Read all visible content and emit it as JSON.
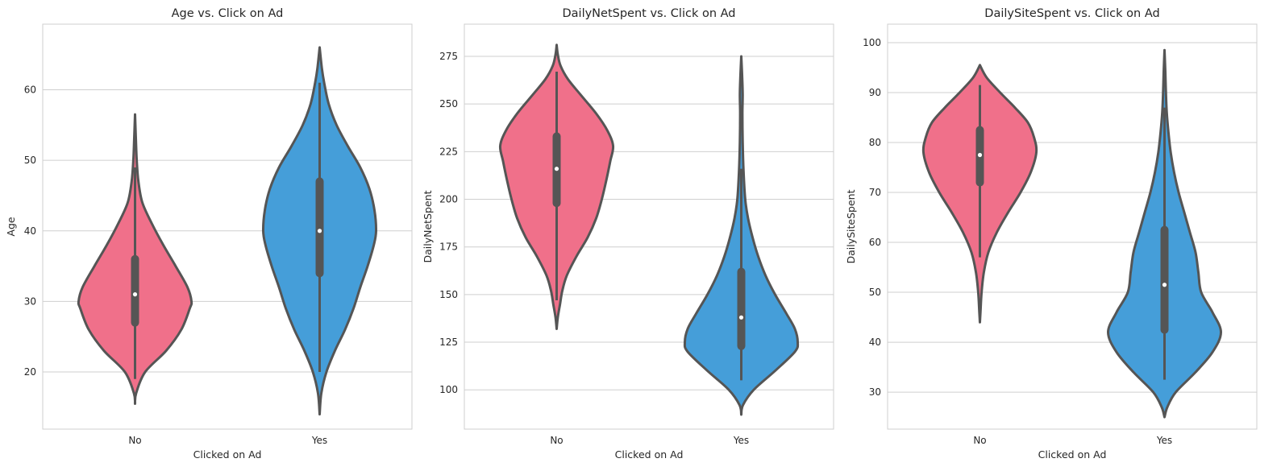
{
  "figure": {
    "background": "#ffffff",
    "grid_color": "#cfcfcf",
    "edge_color": "#555555"
  },
  "chart_data": [
    {
      "type": "violin",
      "title": "Age vs. Click on Ad",
      "xlabel": "Clicked on Ad",
      "ylabel": "Age",
      "categories": [
        "No",
        "Yes"
      ],
      "ylim": [
        11.9,
        69.3
      ],
      "yticks": [
        20,
        30,
        40,
        50,
        60
      ],
      "grid": "horizontal",
      "series": [
        {
          "category": "No",
          "color": "#f0708a",
          "min": 19,
          "q1": 27,
          "median": 31,
          "q3": 36,
          "max": 49,
          "profile": [
            [
              15.5,
              0
            ],
            [
              17,
              0.02
            ],
            [
              20,
              0.18
            ],
            [
              23,
              0.55
            ],
            [
              26,
              0.82
            ],
            [
              29,
              0.97
            ],
            [
              30,
              1
            ],
            [
              32,
              0.93
            ],
            [
              35,
              0.72
            ],
            [
              38,
              0.5
            ],
            [
              41,
              0.3
            ],
            [
              44,
              0.13
            ],
            [
              47,
              0.06
            ],
            [
              50,
              0.03
            ],
            [
              53,
              0.015
            ],
            [
              56.5,
              0
            ]
          ]
        },
        {
          "category": "Yes",
          "color": "#459ed9",
          "min": 20,
          "q1": 34,
          "median": 40,
          "q3": 47,
          "max": 61,
          "profile": [
            [
              14,
              0
            ],
            [
              17,
              0.03
            ],
            [
              20,
              0.12
            ],
            [
              23,
              0.27
            ],
            [
              26,
              0.45
            ],
            [
              29,
              0.6
            ],
            [
              32,
              0.72
            ],
            [
              35,
              0.85
            ],
            [
              38,
              0.96
            ],
            [
              40,
              1
            ],
            [
              43,
              0.97
            ],
            [
              46,
              0.88
            ],
            [
              49,
              0.72
            ],
            [
              52,
              0.5
            ],
            [
              55,
              0.3
            ],
            [
              58,
              0.16
            ],
            [
              61,
              0.08
            ],
            [
              63,
              0.04
            ],
            [
              66,
              0
            ]
          ]
        }
      ]
    },
    {
      "type": "violin",
      "title": "DailyNetSpent vs. Click on Ad",
      "xlabel": "Clicked on Ad",
      "ylabel": "DailyNetSpent",
      "categories": [
        "No",
        "Yes"
      ],
      "ylim": [
        79.4,
        291.9
      ],
      "yticks": [
        100,
        125,
        150,
        175,
        200,
        225,
        250,
        275
      ],
      "grid": "horizontal",
      "series": [
        {
          "category": "No",
          "color": "#f0708a",
          "min": 147,
          "q1": 198,
          "median": 216,
          "q3": 233,
          "max": 267,
          "profile": [
            [
              132,
              0
            ],
            [
              138,
              0.02
            ],
            [
              145,
              0.06
            ],
            [
              152,
              0.1
            ],
            [
              160,
              0.18
            ],
            [
              170,
              0.35
            ],
            [
              180,
              0.55
            ],
            [
              190,
              0.7
            ],
            [
              200,
              0.8
            ],
            [
              210,
              0.88
            ],
            [
              220,
              0.95
            ],
            [
              228,
              1
            ],
            [
              236,
              0.9
            ],
            [
              245,
              0.7
            ],
            [
              255,
              0.42
            ],
            [
              263,
              0.2
            ],
            [
              270,
              0.07
            ],
            [
              276,
              0.02
            ],
            [
              281,
              0
            ]
          ]
        },
        {
          "category": "Yes",
          "color": "#459ed9",
          "min": 105,
          "q1": 123,
          "median": 138,
          "q3": 162,
          "max": 216,
          "profile": [
            [
              87,
              0
            ],
            [
              92,
              0.03
            ],
            [
              100,
              0.22
            ],
            [
              110,
              0.6
            ],
            [
              120,
              0.95
            ],
            [
              125,
              1
            ],
            [
              132,
              0.95
            ],
            [
              140,
              0.8
            ],
            [
              150,
              0.6
            ],
            [
              160,
              0.43
            ],
            [
              170,
              0.3
            ],
            [
              180,
              0.2
            ],
            [
              190,
              0.12
            ],
            [
              200,
              0.07
            ],
            [
              215,
              0.04
            ],
            [
              230,
              0.025
            ],
            [
              245,
              0.02
            ],
            [
              255,
              0.025
            ],
            [
              265,
              0.015
            ],
            [
              275,
              0
            ]
          ]
        }
      ]
    },
    {
      "type": "violin",
      "title": "DailySiteSpent vs. Click on Ad",
      "xlabel": "Clicked on Ad",
      "ylabel": "DailySiteSpent",
      "categories": [
        "No",
        "Yes"
      ],
      "ylim": [
        22.6,
        103.7
      ],
      "yticks": [
        30,
        40,
        50,
        60,
        70,
        80,
        90,
        100
      ],
      "grid": "horizontal",
      "series": [
        {
          "category": "No",
          "color": "#f0708a",
          "min": 57,
          "q1": 72,
          "median": 77.5,
          "q3": 82.5,
          "max": 91.5,
          "profile": [
            [
              44,
              0
            ],
            [
              46,
              0.01
            ],
            [
              50,
              0.03
            ],
            [
              54,
              0.07
            ],
            [
              58,
              0.15
            ],
            [
              62,
              0.3
            ],
            [
              66,
              0.5
            ],
            [
              70,
              0.72
            ],
            [
              74,
              0.9
            ],
            [
              78,
              1
            ],
            [
              81,
              0.96
            ],
            [
              84,
              0.85
            ],
            [
              87,
              0.62
            ],
            [
              90,
              0.36
            ],
            [
              93,
              0.12
            ],
            [
              95.5,
              0
            ]
          ]
        },
        {
          "category": "Yes",
          "color": "#459ed9",
          "min": 32.5,
          "q1": 42.5,
          "median": 51.5,
          "q3": 62.5,
          "max": 87,
          "profile": [
            [
              25,
              0
            ],
            [
              27,
              0.05
            ],
            [
              30,
              0.2
            ],
            [
              34,
              0.55
            ],
            [
              38,
              0.85
            ],
            [
              42,
              1
            ],
            [
              46,
              0.85
            ],
            [
              50,
              0.65
            ],
            [
              54,
              0.6
            ],
            [
              58,
              0.55
            ],
            [
              62,
              0.45
            ],
            [
              66,
              0.35
            ],
            [
              70,
              0.25
            ],
            [
              74,
              0.17
            ],
            [
              78,
              0.11
            ],
            [
              82,
              0.07
            ],
            [
              86,
              0.04
            ],
            [
              90,
              0.025
            ],
            [
              94,
              0.015
            ],
            [
              98.5,
              0
            ]
          ]
        }
      ]
    }
  ]
}
